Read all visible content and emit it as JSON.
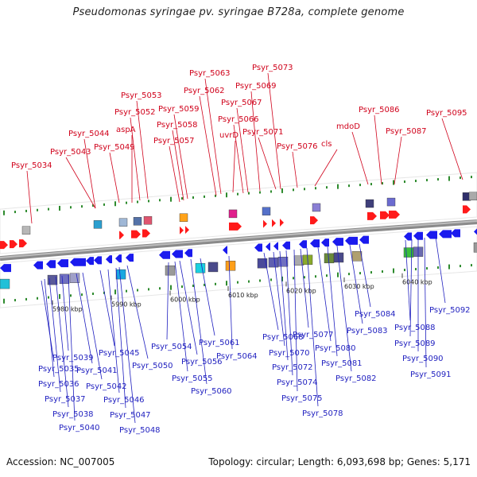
{
  "title": "Pseudomonas syringae pv. syringae B728a, complete genome",
  "footer": {
    "accession": "Accession: NC_007005",
    "topology": "Topology: circular; Length: 6,093,698 bp; Genes: 5,171"
  },
  "colors": {
    "forward_label": "#d0021b",
    "reverse_label": "#1f1fbf",
    "forward_gene": "#ff1a1a",
    "reverse_gene": "#1a1aee",
    "backbone": "#8a8a8a",
    "dots": "#2e8b2e"
  },
  "ticks": [
    {
      "label": "5980 kbp"
    },
    {
      "label": "5990 kbp"
    },
    {
      "label": "6000 kbp"
    },
    {
      "label": "6010 kbp"
    },
    {
      "label": "6020 kbp"
    },
    {
      "label": "6030 kbp"
    },
    {
      "label": "6040 kbp"
    }
  ],
  "forward_labels": [
    {
      "text": "Psyr_5034"
    },
    {
      "text": "Psyr_5043"
    },
    {
      "text": "Psyr_5044"
    },
    {
      "text": "Psyr_5049"
    },
    {
      "text": "aspA"
    },
    {
      "text": "Psyr_5052"
    },
    {
      "text": "Psyr_5053"
    },
    {
      "text": "Psyr_5057"
    },
    {
      "text": "Psyr_5058"
    },
    {
      "text": "Psyr_5059"
    },
    {
      "text": "Psyr_5062"
    },
    {
      "text": "Psyr_5063"
    },
    {
      "text": "uvrD"
    },
    {
      "text": "Psyr_5066"
    },
    {
      "text": "Psyr_5067"
    },
    {
      "text": "Psyr_5069"
    },
    {
      "text": "Psyr_5071"
    },
    {
      "text": "Psyr_5073"
    },
    {
      "text": "Psyr_5076"
    },
    {
      "text": "cls"
    },
    {
      "text": "mdoD"
    },
    {
      "text": "Psyr_5086"
    },
    {
      "text": "Psyr_5087"
    },
    {
      "text": "Psyr_5095"
    }
  ],
  "reverse_labels": [
    {
      "text": "Psyr_5035"
    },
    {
      "text": "Psyr_5036"
    },
    {
      "text": "Psyr_5037"
    },
    {
      "text": "Psyr_5038"
    },
    {
      "text": "Psyr_5039"
    },
    {
      "text": "Psyr_5040"
    },
    {
      "text": "Psyr_5041"
    },
    {
      "text": "Psyr_5042"
    },
    {
      "text": "Psyr_5045"
    },
    {
      "text": "Psyr_5046"
    },
    {
      "text": "Psyr_5047"
    },
    {
      "text": "Psyr_5048"
    },
    {
      "text": "Psyr_5050"
    },
    {
      "text": "Psyr_5054"
    },
    {
      "text": "Psyr_5055"
    },
    {
      "text": "Psyr_5056"
    },
    {
      "text": "Psyr_5060"
    },
    {
      "text": "Psyr_5061"
    },
    {
      "text": "Psyr_5064"
    },
    {
      "text": "Psyr_5068"
    },
    {
      "text": "Psyr_5070"
    },
    {
      "text": "Psyr_5072"
    },
    {
      "text": "Psyr_5074"
    },
    {
      "text": "Psyr_5075"
    },
    {
      "text": "Psyr_5077"
    },
    {
      "text": "Psyr_5078"
    },
    {
      "text": "Psyr_5080"
    },
    {
      "text": "Psyr_5081"
    },
    {
      "text": "Psyr_5082"
    },
    {
      "text": "Psyr_5083"
    },
    {
      "text": "Psyr_5084"
    },
    {
      "text": "Psyr_5088"
    },
    {
      "text": "Psyr_5089"
    },
    {
      "text": "Psyr_5090"
    },
    {
      "text": "Psyr_5091"
    },
    {
      "text": "Psyr_5092"
    }
  ]
}
